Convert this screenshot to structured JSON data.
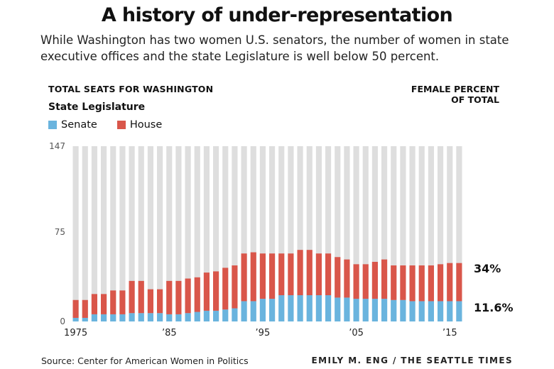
{
  "title": "A history of under-representation",
  "subtitle": "While Washington has two women U.S. senators, the number of women in state executive offices and the state Legislature is well below 50 percent.",
  "left_header": "TOTAL SEATS FOR WASHINGTON",
  "right_header_line1": "FEMALE PERCENT",
  "right_header_line2": "OF TOTAL",
  "group_label": "State Legislature",
  "legend": [
    {
      "label": "Senate",
      "color": "#6ab4de"
    },
    {
      "label": "House",
      "color": "#d9564a"
    }
  ],
  "colors": {
    "background_bar": "#dedede",
    "senate": "#6ab4de",
    "house": "#d9564a"
  },
  "footer": {
    "source": "Source: Center for American Women in Politics",
    "credit": "EMILY M. ENG / THE SEATTLE TIMES"
  },
  "chart_data": {
    "type": "bar",
    "stacked": true,
    "x": [
      1975,
      1976,
      1977,
      1978,
      1979,
      1980,
      1981,
      1982,
      1983,
      1984,
      1985,
      1986,
      1987,
      1988,
      1989,
      1990,
      1991,
      1992,
      1993,
      1994,
      1995,
      1996,
      1997,
      1998,
      1999,
      2000,
      2001,
      2002,
      2003,
      2004,
      2005,
      2006,
      2007,
      2008,
      2009,
      2010,
      2011,
      2012,
      2013,
      2014,
      2015,
      2016
    ],
    "total_seats": 147,
    "series": [
      {
        "name": "Senate",
        "values": [
          3,
          3,
          6,
          6,
          6,
          6,
          7,
          7,
          7,
          7,
          6,
          6,
          7,
          8,
          9,
          9,
          10,
          11,
          17,
          17,
          19,
          19,
          22,
          22,
          22,
          22,
          22,
          22,
          20,
          20,
          19,
          19,
          19,
          19,
          18,
          18,
          17,
          17,
          17,
          17,
          17,
          17
        ]
      },
      {
        "name": "House",
        "values": [
          15,
          15,
          17,
          17,
          20,
          20,
          27,
          27,
          20,
          20,
          28,
          28,
          29,
          29,
          32,
          33,
          35,
          36,
          40,
          41,
          38,
          38,
          35,
          35,
          38,
          38,
          35,
          35,
          34,
          32,
          29,
          29,
          31,
          33,
          29,
          29,
          30,
          30,
          30,
          31,
          32,
          32
        ]
      }
    ],
    "yticks": [
      0,
      75,
      147
    ],
    "ylim": [
      0,
      147
    ],
    "xtick_labels": [
      {
        "year": 1975,
        "label": "1975"
      },
      {
        "year": 1985,
        "label": "’85"
      },
      {
        "year": 1995,
        "label": "’95"
      },
      {
        "year": 2005,
        "label": "’05"
      },
      {
        "year": 2015,
        "label": "’15"
      }
    ],
    "end_labels": {
      "total_percent": "34%",
      "senate_percent": "11.6%"
    }
  }
}
